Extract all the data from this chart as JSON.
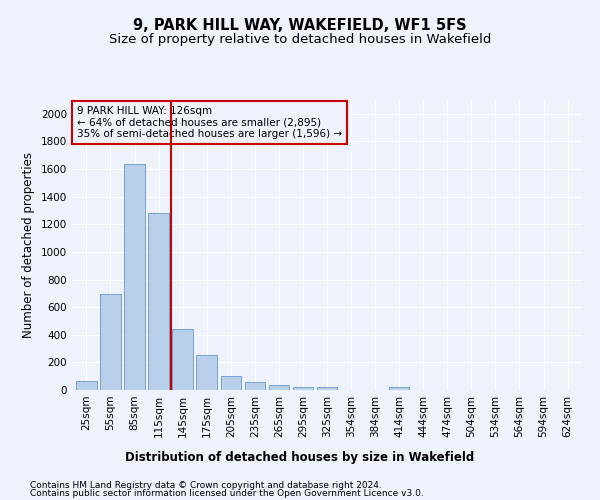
{
  "title": "9, PARK HILL WAY, WAKEFIELD, WF1 5FS",
  "subtitle": "Size of property relative to detached houses in Wakefield",
  "xlabel": "Distribution of detached houses by size in Wakefield",
  "ylabel": "Number of detached properties",
  "categories": [
    "25sqm",
    "55sqm",
    "85sqm",
    "115sqm",
    "145sqm",
    "175sqm",
    "205sqm",
    "235sqm",
    "265sqm",
    "295sqm",
    "325sqm",
    "354sqm",
    "384sqm",
    "414sqm",
    "444sqm",
    "474sqm",
    "504sqm",
    "534sqm",
    "564sqm",
    "594sqm",
    "624sqm"
  ],
  "values": [
    68,
    695,
    1635,
    1285,
    445,
    255,
    98,
    55,
    35,
    22,
    20,
    0,
    0,
    22,
    0,
    0,
    0,
    0,
    0,
    0,
    0
  ],
  "bar_color": "#b8d0ea",
  "bar_edge_color": "#6699cc",
  "vline_x": 3.5,
  "vline_color": "#cc0000",
  "annotation_text_line1": "9 PARK HILL WAY: 126sqm",
  "annotation_text_line2": "← 64% of detached houses are smaller (2,895)",
  "annotation_text_line3": "35% of semi-detached houses are larger (1,596) →",
  "annotation_box_color": "#cc0000",
  "ylim": [
    0,
    2100
  ],
  "yticks": [
    0,
    200,
    400,
    600,
    800,
    1000,
    1200,
    1400,
    1600,
    1800,
    2000
  ],
  "footnote1": "Contains HM Land Registry data © Crown copyright and database right 2024.",
  "footnote2": "Contains public sector information licensed under the Open Government Licence v3.0.",
  "background_color": "#eef2fa",
  "grid_color": "#ffffff",
  "title_fontsize": 10.5,
  "subtitle_fontsize": 9.5,
  "axis_label_fontsize": 8.5,
  "tick_fontsize": 7.5,
  "footnote_fontsize": 6.5
}
